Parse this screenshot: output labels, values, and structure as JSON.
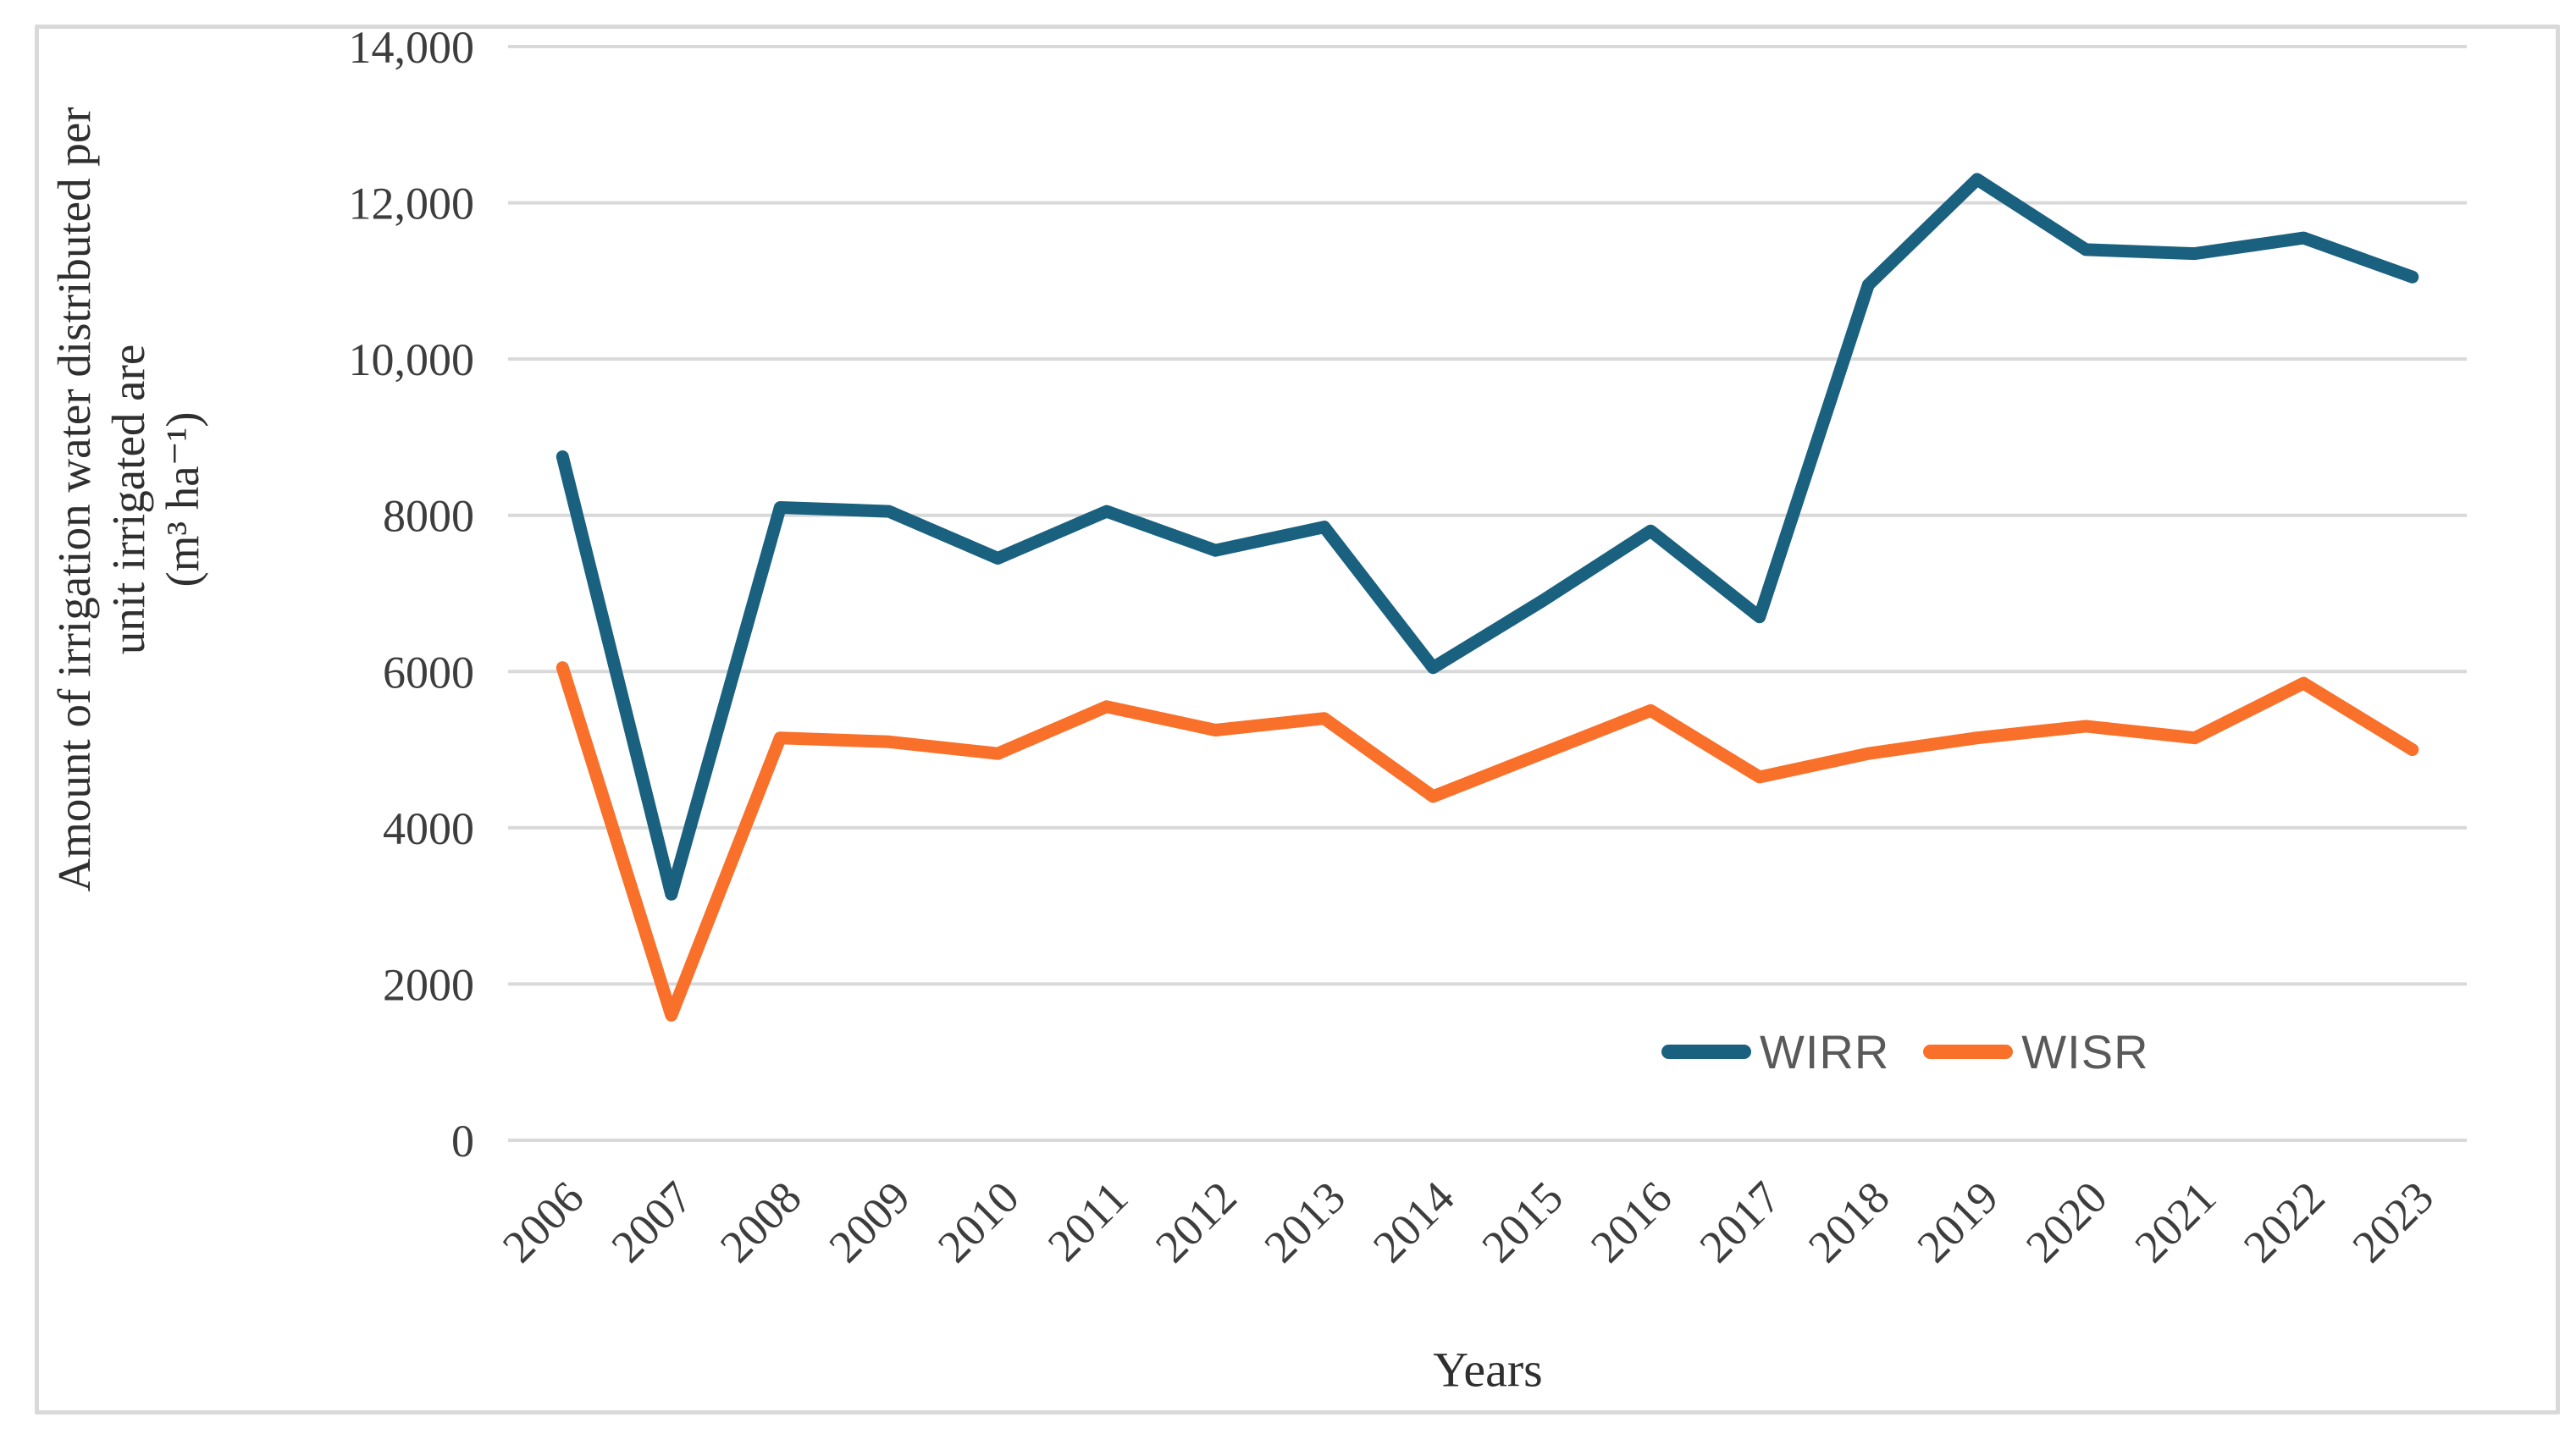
{
  "figure": {
    "background_color": "#FFFFFF",
    "border_color": "#D9D9D9"
  },
  "chart_data": {
    "type": "line",
    "title": "",
    "xlabel": "Years",
    "ylabel_lines": [
      "Amount of irrigation  water distributed per",
      "unit irrigated are",
      "(m³ ha⁻¹)"
    ],
    "categories": [
      "2006",
      "2007",
      "2008",
      "2009",
      "2010",
      "2011",
      "2012",
      "2013",
      "2014",
      "2015",
      "2016",
      "2017",
      "2018",
      "2019",
      "2020",
      "2021",
      "2022",
      "2023"
    ],
    "y_tick_labels": [
      "0",
      "2000",
      "4000",
      "6000",
      "8000",
      "10,000",
      "12,000",
      "14,000"
    ],
    "y_tick_values": [
      0,
      2000,
      4000,
      6000,
      8000,
      10000,
      12000,
      14000
    ],
    "ylim": [
      0,
      14000
    ],
    "grid": "horizontal",
    "grid_color": "#D9D9D9",
    "legend_position": "inside-bottom-right",
    "series": [
      {
        "name": "WIRR",
        "color": "#1A617F",
        "values": [
          8750,
          3150,
          8100,
          8050,
          7450,
          8050,
          7550,
          7850,
          6050,
          6900,
          7800,
          6700,
          10950,
          12300,
          11400,
          11350,
          11550,
          11050
        ]
      },
      {
        "name": "WISR",
        "color": "#F9702A",
        "values": [
          6050,
          1600,
          5150,
          5100,
          4950,
          5550,
          5250,
          5400,
          4400,
          4950,
          5500,
          4650,
          4950,
          5150,
          5300,
          5150,
          5850,
          5000
        ]
      }
    ]
  }
}
